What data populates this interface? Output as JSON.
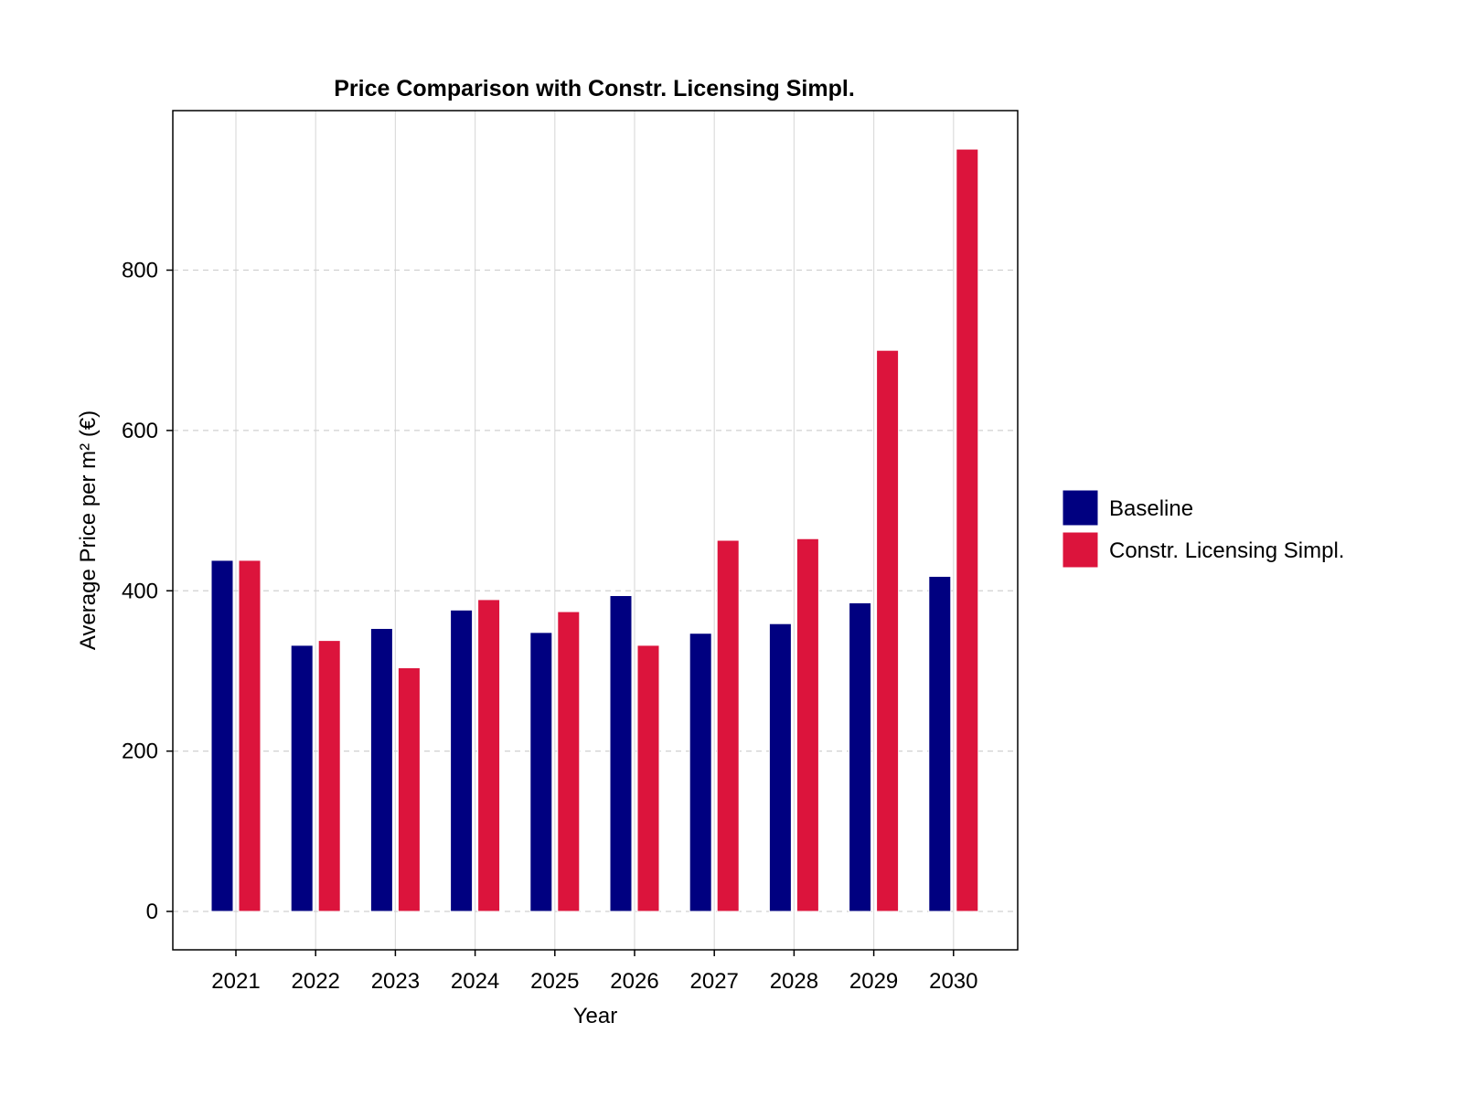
{
  "chart_data": {
    "type": "bar",
    "title": "Price Comparison with Constr. Licensing Simpl.",
    "xlabel": "Year",
    "ylabel": "Average Price per m² (€)",
    "categories": [
      "2021",
      "2022",
      "2023",
      "2024",
      "2025",
      "2026",
      "2027",
      "2028",
      "2029",
      "2030"
    ],
    "series": [
      {
        "name": "Baseline",
        "color": "#000080",
        "values": [
          438,
          332,
          353,
          376,
          348,
          394,
          347,
          359,
          385,
          418
        ]
      },
      {
        "name": "Constr. Licensing Simpl.",
        "color": "#DC143C",
        "values": [
          438,
          338,
          304,
          389,
          374,
          332,
          463,
          465,
          700,
          951
        ]
      }
    ],
    "yticks": [
      "0",
      "200",
      "400",
      "600",
      "800"
    ],
    "ytick_values": [
      0,
      200,
      400,
      600,
      800
    ],
    "ylim": [
      -48,
      1000
    ],
    "grid": true,
    "legend_position": "right"
  }
}
